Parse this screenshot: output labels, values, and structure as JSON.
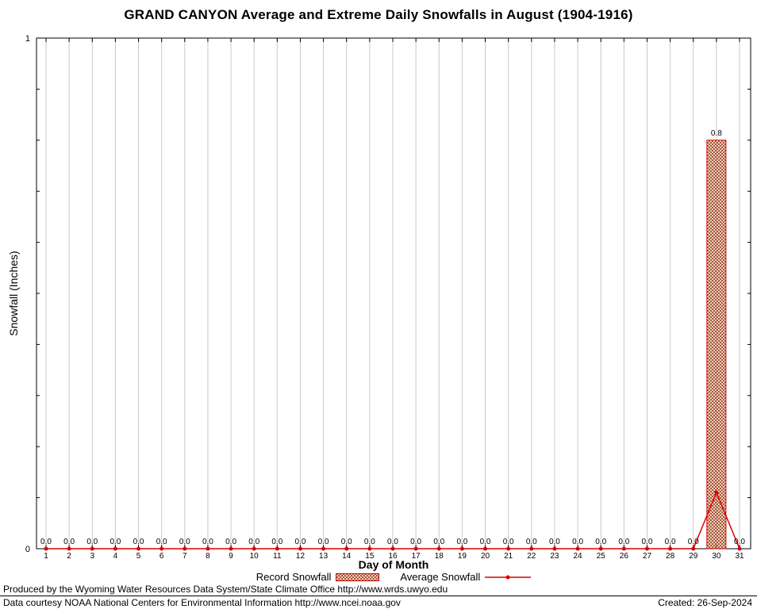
{
  "chart_data": {
    "type": "bar",
    "title": "GRAND CANYON Average and Extreme Daily Snowfalls in August (1904-1916)",
    "xlabel": "Day of Month",
    "ylabel": "Snowfall (Inches)",
    "ylim": [
      0,
      1
    ],
    "ytick_labels": [
      "0",
      "1"
    ],
    "grid": "vertical-line-per-day",
    "legend_position": "bottom-center",
    "x": [
      1,
      2,
      3,
      4,
      5,
      6,
      7,
      8,
      9,
      10,
      11,
      12,
      13,
      14,
      15,
      16,
      17,
      18,
      19,
      20,
      21,
      22,
      23,
      24,
      25,
      26,
      27,
      28,
      29,
      30,
      31
    ],
    "series": [
      {
        "name": "Record Snowfall",
        "type": "bar",
        "style": "crosshatch",
        "values": [
          0,
          0,
          0,
          0,
          0,
          0,
          0,
          0,
          0,
          0,
          0,
          0,
          0,
          0,
          0,
          0,
          0,
          0,
          0,
          0,
          0,
          0,
          0,
          0,
          0,
          0,
          0,
          0,
          0,
          0.8,
          0
        ]
      },
      {
        "name": "Average Snowfall",
        "type": "line-with-points",
        "values": [
          0,
          0,
          0,
          0,
          0,
          0,
          0,
          0,
          0,
          0,
          0,
          0,
          0,
          0,
          0,
          0,
          0,
          0,
          0,
          0,
          0,
          0,
          0,
          0,
          0,
          0,
          0,
          0,
          0,
          0.11,
          0
        ]
      }
    ],
    "value_labels": [
      "0.0",
      "0.0",
      "0.0",
      "0.0",
      "0.0",
      "0.0",
      "0.0",
      "0.0",
      "0.0",
      "0.0",
      "0.0",
      "0.0",
      "0.0",
      "0.0",
      "0.0",
      "0.0",
      "0.0",
      "0.0",
      "0.0",
      "0.0",
      "0.0",
      "0.0",
      "0.0",
      "0.0",
      "0.0",
      "0.0",
      "0.0",
      "0.0",
      "0.0",
      "0.8",
      "0.0"
    ]
  },
  "colors": {
    "average_line": "#dd0000",
    "record_border": "#cc0000",
    "record_hatch": "#a84a22",
    "grid_line": "#c9c9c9",
    "axis": "#000000",
    "background": "#ffffff"
  },
  "footer": {
    "line1": "Produced by the Wyoming Water Resources Data System/State Climate Office http://www.wrds.uwyo.edu",
    "line2": "Data courtesy NOAA National Centers for Environmental Information http://www.ncei.noaa.gov",
    "created": "Created: 26-Sep-2024"
  }
}
